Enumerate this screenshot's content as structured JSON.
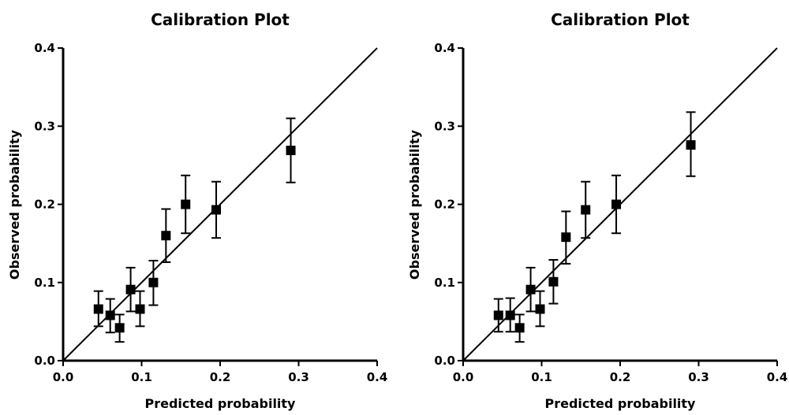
{
  "chart_data": [
    {
      "type": "scatter",
      "title": "Calibration Plot",
      "xlabel": "Predicted probability",
      "ylabel": "Observed probability",
      "xlim": [
        0.0,
        0.4
      ],
      "ylim": [
        0.0,
        0.4
      ],
      "xticks": [
        "0.0",
        "0.1",
        "0.2",
        "0.3",
        "0.4"
      ],
      "yticks": [
        "0.0",
        "0.1",
        "0.2",
        "0.3",
        "0.4"
      ],
      "reference_line": {
        "type": "identity",
        "from": [
          0.0,
          0.0
        ],
        "to": [
          0.4,
          0.4
        ]
      },
      "grid": false,
      "points": [
        {
          "x": 0.045,
          "y": 0.066,
          "ylow": 0.044,
          "yhigh": 0.089
        },
        {
          "x": 0.06,
          "y": 0.058,
          "ylow": 0.036,
          "yhigh": 0.079
        },
        {
          "x": 0.072,
          "y": 0.042,
          "ylow": 0.024,
          "yhigh": 0.059
        },
        {
          "x": 0.086,
          "y": 0.091,
          "ylow": 0.063,
          "yhigh": 0.119
        },
        {
          "x": 0.098,
          "y": 0.066,
          "ylow": 0.044,
          "yhigh": 0.089
        },
        {
          "x": 0.115,
          "y": 0.1,
          "ylow": 0.071,
          "yhigh": 0.128
        },
        {
          "x": 0.131,
          "y": 0.16,
          "ylow": 0.126,
          "yhigh": 0.194
        },
        {
          "x": 0.156,
          "y": 0.2,
          "ylow": 0.163,
          "yhigh": 0.237
        },
        {
          "x": 0.195,
          "y": 0.193,
          "ylow": 0.157,
          "yhigh": 0.229
        },
        {
          "x": 0.29,
          "y": 0.269,
          "ylow": 0.228,
          "yhigh": 0.31
        }
      ]
    },
    {
      "type": "scatter",
      "title": "Calibration Plot",
      "xlabel": "Predicted probability",
      "ylabel": "Observed probability",
      "xlim": [
        0.0,
        0.4
      ],
      "ylim": [
        0.0,
        0.4
      ],
      "xticks": [
        "0.0",
        "0.1",
        "0.2",
        "0.3",
        "0.4"
      ],
      "yticks": [
        "0.0",
        "0.1",
        "0.2",
        "0.3",
        "0.4"
      ],
      "reference_line": {
        "type": "identity",
        "from": [
          0.0,
          0.0
        ],
        "to": [
          0.4,
          0.4
        ]
      },
      "grid": false,
      "points": [
        {
          "x": 0.045,
          "y": 0.058,
          "ylow": 0.037,
          "yhigh": 0.079
        },
        {
          "x": 0.06,
          "y": 0.058,
          "ylow": 0.037,
          "yhigh": 0.08
        },
        {
          "x": 0.072,
          "y": 0.042,
          "ylow": 0.024,
          "yhigh": 0.059
        },
        {
          "x": 0.086,
          "y": 0.091,
          "ylow": 0.063,
          "yhigh": 0.119
        },
        {
          "x": 0.098,
          "y": 0.066,
          "ylow": 0.044,
          "yhigh": 0.089
        },
        {
          "x": 0.115,
          "y": 0.101,
          "ylow": 0.073,
          "yhigh": 0.129
        },
        {
          "x": 0.131,
          "y": 0.158,
          "ylow": 0.124,
          "yhigh": 0.191
        },
        {
          "x": 0.156,
          "y": 0.193,
          "ylow": 0.157,
          "yhigh": 0.229
        },
        {
          "x": 0.195,
          "y": 0.2,
          "ylow": 0.163,
          "yhigh": 0.237
        },
        {
          "x": 0.29,
          "y": 0.276,
          "ylow": 0.236,
          "yhigh": 0.318
        }
      ]
    }
  ]
}
